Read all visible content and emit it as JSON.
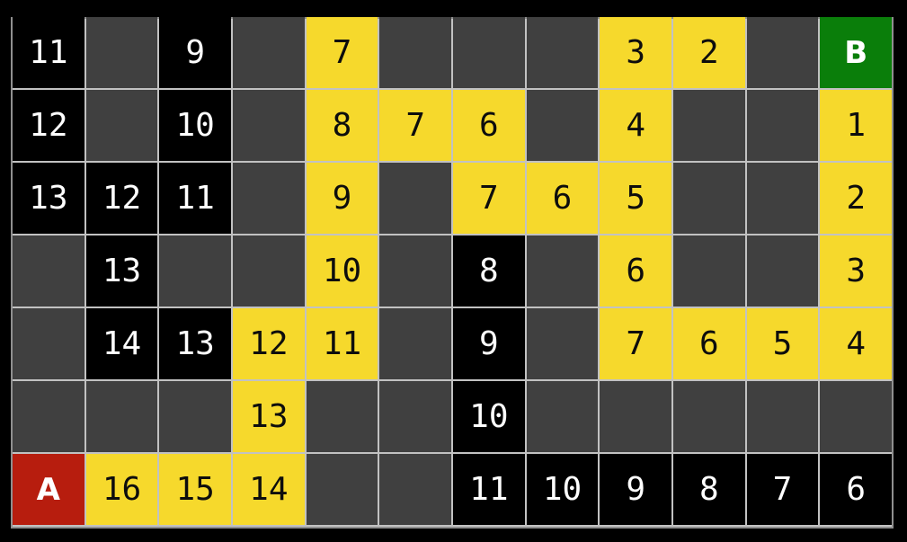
{
  "diagram": {
    "kind": "grid-pathfinding-visualization",
    "rows": 7,
    "cols": 12,
    "start_label": "A",
    "goal_label": "B",
    "colors": {
      "page_background": "#000000",
      "empty_cell": "#404040",
      "visited_cell": "#000000",
      "path_cell": "#f6d92c",
      "start_cell": "#b71d0e",
      "goal_cell": "#0a7e0a",
      "grid_line": "#c2c2c2",
      "outer_border": "#8f8f8f",
      "text_on_dark": "#ffffff",
      "text_on_path": "#0d0d0d"
    },
    "cells": [
      [
        {
          "type": "visited",
          "label": "11"
        },
        {
          "type": "empty",
          "label": ""
        },
        {
          "type": "visited",
          "label": "9"
        },
        {
          "type": "empty",
          "label": ""
        },
        {
          "type": "path",
          "label": "7"
        },
        {
          "type": "empty",
          "label": ""
        },
        {
          "type": "empty",
          "label": ""
        },
        {
          "type": "empty",
          "label": ""
        },
        {
          "type": "path",
          "label": "3"
        },
        {
          "type": "path",
          "label": "2"
        },
        {
          "type": "empty",
          "label": ""
        },
        {
          "type": "goal",
          "label": "B"
        }
      ],
      [
        {
          "type": "visited",
          "label": "12"
        },
        {
          "type": "empty",
          "label": ""
        },
        {
          "type": "visited",
          "label": "10"
        },
        {
          "type": "empty",
          "label": ""
        },
        {
          "type": "path",
          "label": "8"
        },
        {
          "type": "path",
          "label": "7"
        },
        {
          "type": "path",
          "label": "6"
        },
        {
          "type": "empty",
          "label": ""
        },
        {
          "type": "path",
          "label": "4"
        },
        {
          "type": "empty",
          "label": ""
        },
        {
          "type": "empty",
          "label": ""
        },
        {
          "type": "path",
          "label": "1"
        }
      ],
      [
        {
          "type": "visited",
          "label": "13"
        },
        {
          "type": "visited",
          "label": "12"
        },
        {
          "type": "visited",
          "label": "11"
        },
        {
          "type": "empty",
          "label": ""
        },
        {
          "type": "path",
          "label": "9"
        },
        {
          "type": "empty",
          "label": ""
        },
        {
          "type": "path",
          "label": "7"
        },
        {
          "type": "path",
          "label": "6"
        },
        {
          "type": "path",
          "label": "5"
        },
        {
          "type": "empty",
          "label": ""
        },
        {
          "type": "empty",
          "label": ""
        },
        {
          "type": "path",
          "label": "2"
        }
      ],
      [
        {
          "type": "empty",
          "label": ""
        },
        {
          "type": "visited",
          "label": "13"
        },
        {
          "type": "empty",
          "label": ""
        },
        {
          "type": "empty",
          "label": ""
        },
        {
          "type": "path",
          "label": "10"
        },
        {
          "type": "empty",
          "label": ""
        },
        {
          "type": "visited",
          "label": "8"
        },
        {
          "type": "empty",
          "label": ""
        },
        {
          "type": "path",
          "label": "6"
        },
        {
          "type": "empty",
          "label": ""
        },
        {
          "type": "empty",
          "label": ""
        },
        {
          "type": "path",
          "label": "3"
        }
      ],
      [
        {
          "type": "empty",
          "label": ""
        },
        {
          "type": "visited",
          "label": "14"
        },
        {
          "type": "visited",
          "label": "13"
        },
        {
          "type": "path",
          "label": "12"
        },
        {
          "type": "path",
          "label": "11"
        },
        {
          "type": "empty",
          "label": ""
        },
        {
          "type": "visited",
          "label": "9"
        },
        {
          "type": "empty",
          "label": ""
        },
        {
          "type": "path",
          "label": "7"
        },
        {
          "type": "path",
          "label": "6"
        },
        {
          "type": "path",
          "label": "5"
        },
        {
          "type": "path",
          "label": "4"
        }
      ],
      [
        {
          "type": "empty",
          "label": ""
        },
        {
          "type": "empty",
          "label": ""
        },
        {
          "type": "empty",
          "label": ""
        },
        {
          "type": "path",
          "label": "13"
        },
        {
          "type": "empty",
          "label": ""
        },
        {
          "type": "empty",
          "label": ""
        },
        {
          "type": "visited",
          "label": "10"
        },
        {
          "type": "empty",
          "label": ""
        },
        {
          "type": "empty",
          "label": ""
        },
        {
          "type": "empty",
          "label": ""
        },
        {
          "type": "empty",
          "label": ""
        },
        {
          "type": "empty",
          "label": ""
        }
      ],
      [
        {
          "type": "start",
          "label": "A"
        },
        {
          "type": "path",
          "label": "16"
        },
        {
          "type": "path",
          "label": "15"
        },
        {
          "type": "path",
          "label": "14"
        },
        {
          "type": "empty",
          "label": ""
        },
        {
          "type": "empty",
          "label": ""
        },
        {
          "type": "visited",
          "label": "11"
        },
        {
          "type": "visited",
          "label": "10"
        },
        {
          "type": "visited",
          "label": "9"
        },
        {
          "type": "visited",
          "label": "8"
        },
        {
          "type": "visited",
          "label": "7"
        },
        {
          "type": "visited",
          "label": "6"
        }
      ]
    ]
  }
}
